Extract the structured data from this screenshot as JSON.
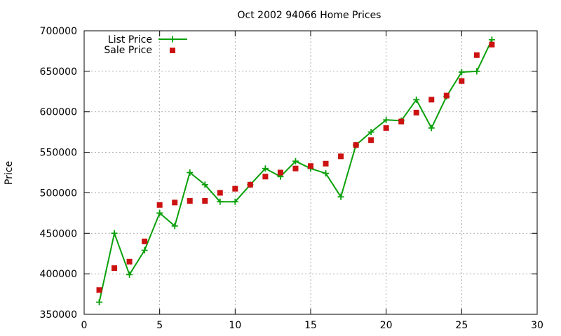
{
  "chart_data": {
    "type": "line",
    "title": "Oct 2002 94066 Home Prices",
    "xlabel": "",
    "ylabel": "Price",
    "xlim": [
      0,
      30
    ],
    "ylim": [
      350000,
      700000
    ],
    "xticks": [
      0,
      5,
      10,
      15,
      20,
      25,
      30
    ],
    "yticks": [
      350000,
      400000,
      450000,
      500000,
      550000,
      600000,
      650000,
      700000
    ],
    "grid": true,
    "legend_position": "top-left",
    "series": [
      {
        "name": "List Price",
        "style": "line-with-plus-markers",
        "color": "#0aa00a",
        "points": [
          [
            1,
            365000
          ],
          [
            2,
            450000
          ],
          [
            3,
            399000
          ],
          [
            4,
            429000
          ],
          [
            5,
            475000
          ],
          [
            6,
            459000
          ],
          [
            7,
            525000
          ],
          [
            8,
            510000
          ],
          [
            9,
            489000
          ],
          [
            10,
            489000
          ],
          [
            11,
            510000
          ],
          [
            12,
            530000
          ],
          [
            13,
            520000
          ],
          [
            14,
            539000
          ],
          [
            15,
            530000
          ],
          [
            16,
            524000
          ],
          [
            17,
            495000
          ],
          [
            18,
            559000
          ],
          [
            19,
            575000
          ],
          [
            20,
            590000
          ],
          [
            21,
            589000
          ],
          [
            22,
            615000
          ],
          [
            23,
            580000
          ],
          [
            24,
            619000
          ],
          [
            25,
            649000
          ],
          [
            26,
            650000
          ],
          [
            27,
            689000
          ]
        ]
      },
      {
        "name": "Sale Price",
        "style": "square-markers",
        "color": "#cc1111",
        "points": [
          [
            1,
            380000
          ],
          [
            2,
            407000
          ],
          [
            3,
            415000
          ],
          [
            4,
            440000
          ],
          [
            5,
            485000
          ],
          [
            6,
            488000
          ],
          [
            7,
            490000
          ],
          [
            8,
            490000
          ],
          [
            9,
            500000
          ],
          [
            10,
            505000
          ],
          [
            11,
            510000
          ],
          [
            12,
            520000
          ],
          [
            13,
            525000
          ],
          [
            14,
            530000
          ],
          [
            15,
            533000
          ],
          [
            16,
            536000
          ],
          [
            17,
            545000
          ],
          [
            18,
            559000
          ],
          [
            19,
            565000
          ],
          [
            20,
            580000
          ],
          [
            21,
            588000
          ],
          [
            22,
            599000
          ],
          [
            23,
            615000
          ],
          [
            24,
            620000
          ],
          [
            25,
            638000
          ],
          [
            26,
            670000
          ],
          [
            27,
            683000
          ]
        ]
      }
    ]
  }
}
